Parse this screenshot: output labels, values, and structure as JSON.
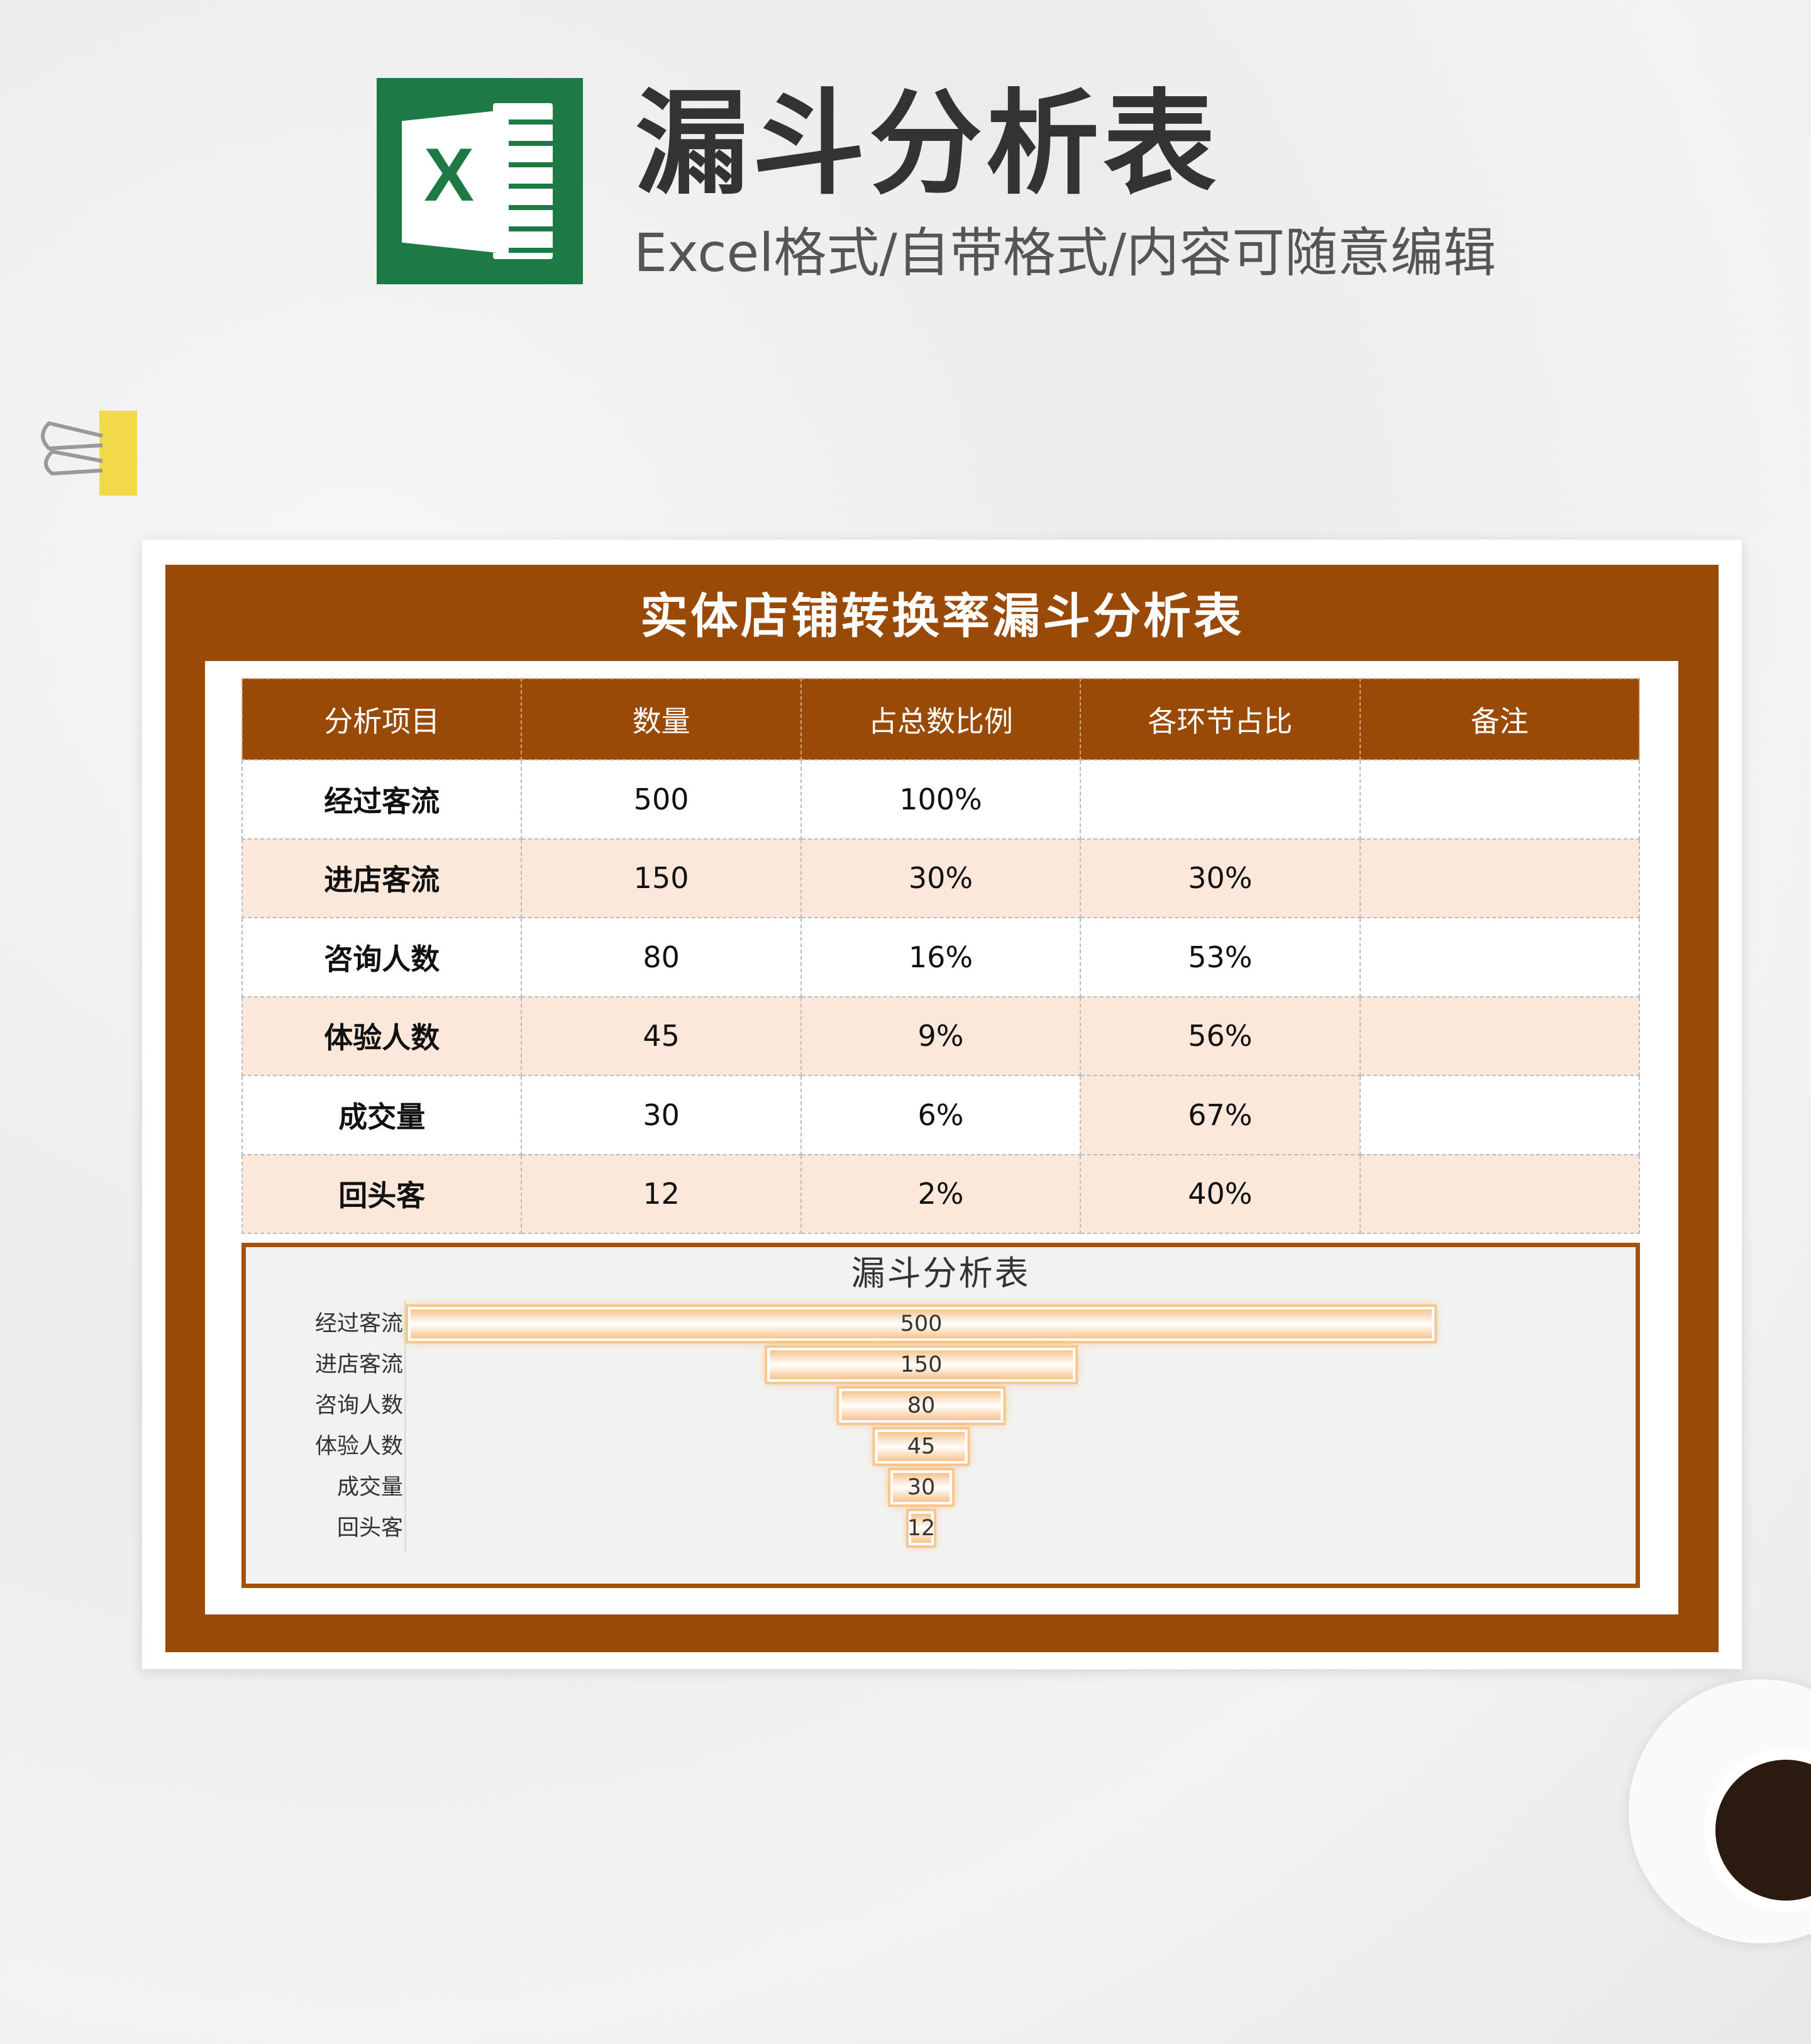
{
  "header": {
    "title": "漏斗分析表",
    "subtitle": "Excel格式/自带格式/内容可随意编辑",
    "logo_letter": "X"
  },
  "sheet": {
    "title": "实体店铺转换率漏斗分析表",
    "columns": [
      "分析项目",
      "数量",
      "占总数比例",
      "各环节占比",
      "备注"
    ],
    "rows": [
      [
        "经过客流",
        "500",
        "100%",
        "",
        ""
      ],
      [
        "进店客流",
        "150",
        "30%",
        "30%",
        ""
      ],
      [
        "咨询人数",
        "80",
        "16%",
        "53%",
        ""
      ],
      [
        "体验人数",
        "45",
        "9%",
        "56%",
        ""
      ],
      [
        "成交量",
        "30",
        "6%",
        "67%",
        ""
      ],
      [
        "回头客",
        "12",
        "2%",
        "40%",
        ""
      ]
    ]
  },
  "colors": {
    "brand": "#9a4a07",
    "row_alt": "#fce8da",
    "excel_green": "#1e7a45",
    "bar": "#f7c48d"
  },
  "chart_data": {
    "type": "bar",
    "subtype": "funnel",
    "title": "漏斗分析表",
    "categories": [
      "经过客流",
      "进店客流",
      "咨询人数",
      "体验人数",
      "成交量",
      "回头客"
    ],
    "values": [
      500,
      150,
      80,
      45,
      30,
      12
    ],
    "data_labels": true,
    "grid": false
  }
}
